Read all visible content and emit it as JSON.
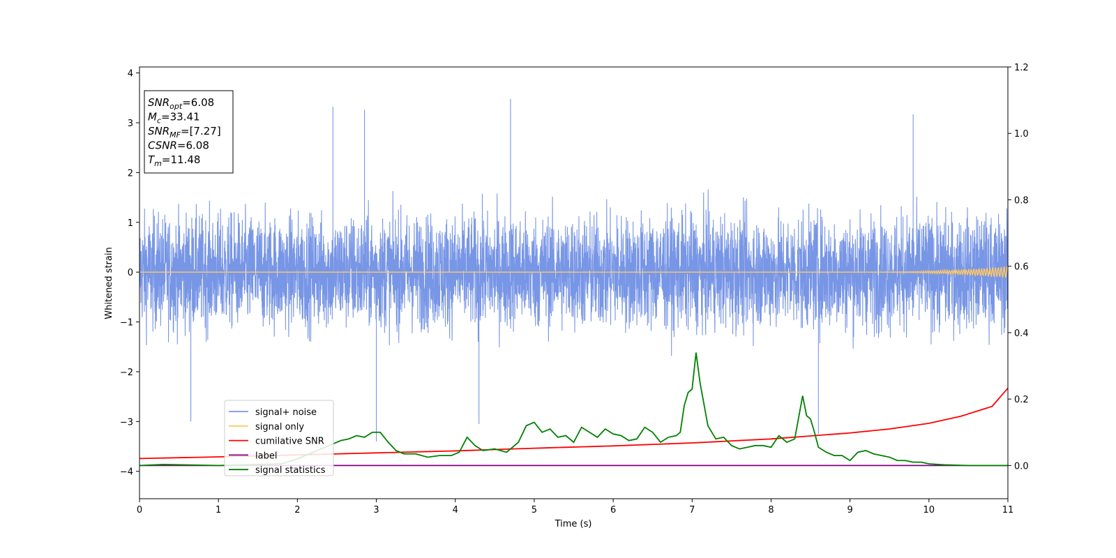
{
  "chart_data": {
    "type": "line",
    "title": "",
    "xlabel": "Time (s)",
    "ylabel": "Whitened strain",
    "xlim": [
      0,
      11
    ],
    "ylim": [
      -4.55,
      4.12
    ],
    "y2lim": [
      -0.1,
      1.2
    ],
    "x_ticks": [
      0,
      1,
      2,
      3,
      4,
      5,
      6,
      7,
      8,
      9,
      10,
      11
    ],
    "y_ticks": [
      -4,
      -3,
      -2,
      -1,
      0,
      1,
      2,
      3,
      4
    ],
    "y2_ticks": [
      "0.0",
      "0.2",
      "0.4",
      "0.6",
      "0.8",
      "1.0",
      "1.2"
    ],
    "grid": false,
    "legend_position": "lower-left",
    "colors": {
      "signal_noise": "#7896e6",
      "signal_only": "#ffc864",
      "cumulative_snr": "#ff0000",
      "label": "#800080",
      "signal_statistics": "#008000"
    },
    "series": [
      {
        "name": "signal+ noise",
        "axis": "left",
        "description_range": [
          -3.1,
          3.5
        ],
        "peaks": [
          [
            2.45,
            3.32
          ],
          [
            2.85,
            3.26
          ],
          [
            4.7,
            3.48
          ],
          [
            9.8,
            3.17
          ],
          [
            0.65,
            -3.0
          ],
          [
            3.0,
            -3.4
          ],
          [
            4.3,
            -3.05
          ],
          [
            8.6,
            -3.25
          ]
        ]
      },
      {
        "name": "signal only",
        "axis": "left",
        "x": [
          0,
          10,
          11
        ],
        "values": [
          0,
          0,
          0
        ],
        "chirp_amplitude_end": 0.12
      },
      {
        "name": "cumilative SNR",
        "axis": "right",
        "x": [
          0,
          1,
          2,
          3,
          4,
          5,
          6,
          7,
          8,
          9,
          9.5,
          10,
          10.4,
          10.8,
          11
        ],
        "values": [
          0.021,
          0.026,
          0.032,
          0.038,
          0.044,
          0.052,
          0.059,
          0.068,
          0.08,
          0.098,
          0.11,
          0.127,
          0.148,
          0.178,
          0.233
        ]
      },
      {
        "name": "label",
        "axis": "right",
        "x": [
          0,
          11
        ],
        "values": [
          0.0,
          0.0
        ]
      },
      {
        "name": "signal statistics",
        "axis": "right",
        "x": [
          0,
          0.3,
          1.0,
          1.8,
          2.0,
          2.2,
          2.35,
          2.45,
          2.55,
          2.65,
          2.75,
          2.85,
          2.95,
          3.05,
          3.15,
          3.25,
          3.35,
          3.5,
          3.65,
          3.8,
          3.95,
          4.05,
          4.15,
          4.25,
          4.35,
          4.5,
          4.65,
          4.8,
          4.9,
          5.0,
          5.1,
          5.2,
          5.3,
          5.4,
          5.5,
          5.6,
          5.7,
          5.8,
          5.9,
          6.0,
          6.1,
          6.2,
          6.3,
          6.4,
          6.5,
          6.6,
          6.7,
          6.8,
          6.85,
          6.9,
          6.95,
          7.0,
          7.05,
          7.1,
          7.2,
          7.3,
          7.4,
          7.5,
          7.6,
          7.7,
          7.8,
          7.9,
          8.0,
          8.1,
          8.2,
          8.3,
          8.4,
          8.45,
          8.5,
          8.55,
          8.6,
          8.7,
          8.8,
          8.9,
          9.0,
          9.1,
          9.2,
          9.3,
          9.4,
          9.5,
          9.6,
          9.7,
          9.8,
          9.9,
          10.0,
          10.2,
          10.5,
          11
        ],
        "values": [
          0.0,
          0.003,
          0.0,
          0.005,
          0.02,
          0.04,
          0.055,
          0.065,
          0.075,
          0.08,
          0.09,
          0.085,
          0.1,
          0.1,
          0.07,
          0.045,
          0.035,
          0.035,
          0.025,
          0.03,
          0.03,
          0.04,
          0.085,
          0.06,
          0.045,
          0.05,
          0.04,
          0.07,
          0.12,
          0.13,
          0.1,
          0.11,
          0.085,
          0.09,
          0.07,
          0.115,
          0.1,
          0.085,
          0.11,
          0.095,
          0.09,
          0.075,
          0.08,
          0.115,
          0.1,
          0.07,
          0.085,
          0.09,
          0.1,
          0.18,
          0.22,
          0.23,
          0.34,
          0.25,
          0.12,
          0.08,
          0.085,
          0.06,
          0.05,
          0.055,
          0.06,
          0.06,
          0.055,
          0.09,
          0.07,
          0.08,
          0.21,
          0.15,
          0.14,
          0.1,
          0.055,
          0.04,
          0.03,
          0.03,
          0.015,
          0.04,
          0.045,
          0.035,
          0.03,
          0.025,
          0.015,
          0.015,
          0.01,
          0.01,
          0.005,
          0.002,
          0.0,
          0.0
        ]
      }
    ],
    "legend": [
      "signal+ noise",
      "signal only",
      "cumilative SNR",
      "label",
      "signal statistics"
    ]
  },
  "annotation": {
    "lines": [
      {
        "base": "SNR",
        "sub": "opt",
        "value": "=6.08"
      },
      {
        "base": "M",
        "sub": "c",
        "value": "=33.41"
      },
      {
        "base": "SNR",
        "sub": "MF",
        "value": "=[7.27]"
      },
      {
        "base": "CSNR",
        "sub": "",
        "value": "=6.08"
      },
      {
        "base": "T",
        "sub": "m",
        "value": "=11.48"
      }
    ]
  }
}
